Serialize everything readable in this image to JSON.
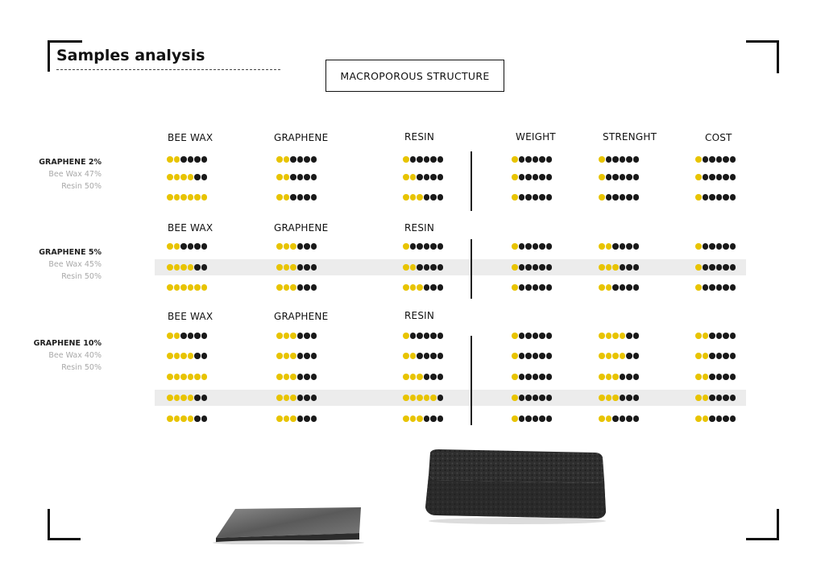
{
  "title": "Samples analysis",
  "subtitle": "MACROPOROUS STRUCTURE",
  "colors": {
    "filled": "#e8c400",
    "empty": "#1a1a1a",
    "band": "#ececec"
  },
  "column_headers": [
    "BEE WAX",
    "GRAPHENE",
    "RESIN",
    "WEIGHT",
    "STRENGHT",
    "COST"
  ],
  "groups": [
    {
      "name": "GRAPHENE 2%",
      "composition": [
        "Bee Wax  47%",
        "Resin 50%"
      ],
      "headers": [
        "BEE WAX",
        "GRAPHENE",
        "RESIN",
        "WEIGHT",
        "STRENGHT",
        "COST"
      ],
      "highlight_row": null,
      "rows": [
        [
          2,
          2,
          1,
          1,
          1,
          1
        ],
        [
          4,
          2,
          2,
          1,
          1,
          1
        ],
        [
          6,
          2,
          3,
          1,
          1,
          1
        ]
      ]
    },
    {
      "name": "GRAPHENE 5%",
      "composition": [
        "Bee Wax  45%",
        "Resin 50%"
      ],
      "headers": [
        "BEE WAX",
        "GRAPHENE",
        "RESIN"
      ],
      "highlight_row": 1,
      "rows": [
        [
          2,
          3,
          1,
          1,
          2,
          1
        ],
        [
          4,
          3,
          2,
          1,
          3,
          1
        ],
        [
          6,
          3,
          3,
          1,
          2,
          1
        ]
      ]
    },
    {
      "name": "GRAPHENE 10%",
      "composition": [
        "Bee Wax  40%",
        "Resin 50%"
      ],
      "headers": [
        "BEE WAX",
        "GRAPHENE",
        "RESIN"
      ],
      "highlight_row": 3,
      "rows": [
        [
          2,
          3,
          1,
          1,
          4,
          2
        ],
        [
          4,
          3,
          2,
          1,
          4,
          2
        ],
        [
          6,
          3,
          3,
          1,
          3,
          2
        ],
        [
          4,
          3,
          5,
          1,
          3,
          2
        ],
        [
          4,
          3,
          3,
          1,
          2,
          2
        ]
      ]
    }
  ]
}
